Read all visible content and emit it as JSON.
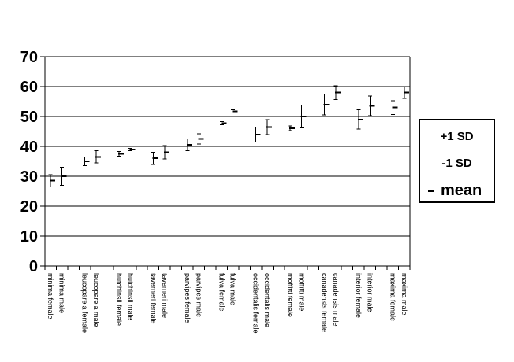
{
  "colors": {
    "foreground": "#000000",
    "background": "#ffffff"
  },
  "chart_data": {
    "type": "scatter",
    "description": "mean with +1 SD and -1 SD whisker for each goose subspecies and sex",
    "ylim": [
      0,
      70
    ],
    "yticks": [
      0,
      10,
      20,
      30,
      40,
      50,
      60,
      70
    ],
    "grid": "horizontal black gridlines every 10",
    "legend_position": "right",
    "slots": 32,
    "legend_entries": [
      {
        "label": "+1 SD",
        "marker": "none"
      },
      {
        "label": "-1 SD",
        "marker": "none"
      },
      {
        "label": "mean",
        "marker": "dash"
      }
    ],
    "points": [
      {
        "slot": 0,
        "label": "minima female",
        "mean": 28.5,
        "sd": 2.0
      },
      {
        "slot": 1,
        "label": "minima male",
        "mean": 30.0,
        "sd": 3.0
      },
      {
        "slot": 3,
        "label": "leucopareia female",
        "mean": 35.0,
        "sd": 1.4
      },
      {
        "slot": 4,
        "label": "leucopareia male",
        "mean": 36.5,
        "sd": 2.0
      },
      {
        "slot": 6,
        "label": "hutchinsii female",
        "mean": 37.5,
        "sd": 0.8
      },
      {
        "slot": 7,
        "label": "hutchinsii male",
        "mean": 39.0,
        "sd": 0.4
      },
      {
        "slot": 9,
        "label": "taverneri female",
        "mean": 36.0,
        "sd": 2.0
      },
      {
        "slot": 10,
        "label": "taverneri male",
        "mean": 38.0,
        "sd": 2.2
      },
      {
        "slot": 12,
        "label": "parvipes female",
        "mean": 40.5,
        "sd": 2.0
      },
      {
        "slot": 13,
        "label": "parvipes male",
        "mean": 42.5,
        "sd": 1.7
      },
      {
        "slot": 15,
        "label": "fulva female",
        "mean": 47.8,
        "sd": 0.5
      },
      {
        "slot": 16,
        "label": "fulva male",
        "mean": 51.7,
        "sd": 0.5
      },
      {
        "slot": 18,
        "label": "occidentalis female",
        "mean": 44.0,
        "sd": 2.5
      },
      {
        "slot": 19,
        "label": "occidentalis male",
        "mean": 46.5,
        "sd": 2.5
      },
      {
        "slot": 21,
        "label": "moffitti female",
        "mean": 46.0,
        "sd": 0.8
      },
      {
        "slot": 22,
        "label": "moffitti male",
        "mean": 50.0,
        "sd": 3.8
      },
      {
        "slot": 24,
        "label": "canadensis female",
        "mean": 54.0,
        "sd": 3.5
      },
      {
        "slot": 25,
        "label": "canadensis male",
        "mean": 58.0,
        "sd": 2.3
      },
      {
        "slot": 27,
        "label": "interior female",
        "mean": 49.0,
        "sd": 3.2
      },
      {
        "slot": 28,
        "label": "interior male",
        "mean": 53.5,
        "sd": 3.3
      },
      {
        "slot": 30,
        "label": "maxima female",
        "mean": 53.0,
        "sd": 2.3
      },
      {
        "slot": 31,
        "label": "maxima male",
        "mean": 58.0,
        "sd": 2.0
      }
    ]
  }
}
